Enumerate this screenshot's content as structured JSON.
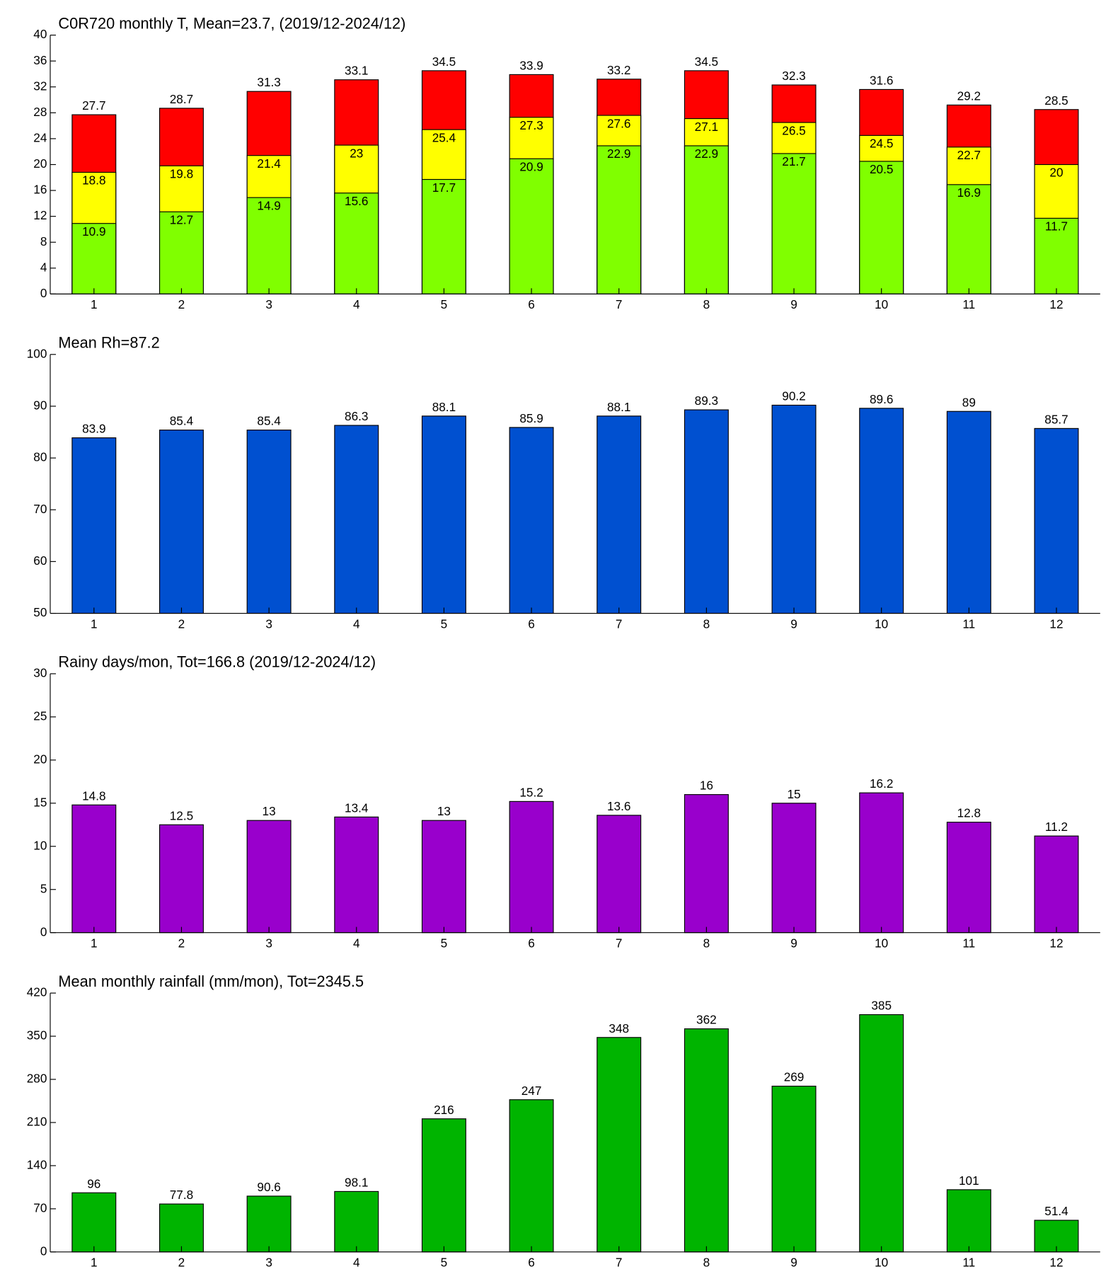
{
  "chart_data": [
    {
      "type": "bar",
      "title": "C0R720 monthly T, Mean=23.7, (2019/12-2024/12)",
      "categories": [
        "1",
        "2",
        "3",
        "4",
        "5",
        "6",
        "7",
        "8",
        "9",
        "10",
        "11",
        "12"
      ],
      "series": [
        {
          "color": "#ff0000",
          "values": [
            27.7,
            28.7,
            31.3,
            33.1,
            34.5,
            33.9,
            33.2,
            34.5,
            32.3,
            31.6,
            29.2,
            28.5
          ]
        },
        {
          "color": "#ffff00",
          "values": [
            18.8,
            19.8,
            21.4,
            23,
            25.4,
            27.3,
            27.6,
            27.1,
            26.5,
            24.5,
            22.7,
            20
          ]
        },
        {
          "color": "#80ff00",
          "values": [
            10.9,
            12.7,
            14.9,
            15.6,
            17.7,
            20.9,
            22.9,
            22.9,
            21.7,
            20.5,
            16.9,
            11.7
          ]
        }
      ],
      "ylim": [
        0,
        40
      ],
      "yticks": [
        0,
        4,
        8,
        12,
        16,
        20,
        24,
        28,
        32,
        36,
        40
      ]
    },
    {
      "type": "bar",
      "title": "Mean Rh=87.2",
      "categories": [
        "1",
        "2",
        "3",
        "4",
        "5",
        "6",
        "7",
        "8",
        "9",
        "10",
        "11",
        "12"
      ],
      "series": [
        {
          "color": "#0050d0",
          "values": [
            83.9,
            85.4,
            85.4,
            86.3,
            88.1,
            85.9,
            88.1,
            89.3,
            90.2,
            89.6,
            89,
            85.7
          ]
        }
      ],
      "ylim": [
        50,
        100
      ],
      "yticks": [
        50,
        60,
        70,
        80,
        90,
        100
      ]
    },
    {
      "type": "bar",
      "title": "Rainy days/mon, Tot=166.8 (2019/12-2024/12)",
      "categories": [
        "1",
        "2",
        "3",
        "4",
        "5",
        "6",
        "7",
        "8",
        "9",
        "10",
        "11",
        "12"
      ],
      "series": [
        {
          "color": "#9900cc",
          "values": [
            14.8,
            12.5,
            13,
            13.4,
            13,
            15.2,
            13.6,
            16,
            15,
            16.2,
            12.8,
            11.2
          ]
        }
      ],
      "ylim": [
        0,
        30
      ],
      "yticks": [
        0,
        5,
        10,
        15,
        20,
        25,
        30
      ]
    },
    {
      "type": "bar",
      "title": "Mean monthly rainfall (mm/mon), Tot=2345.5",
      "categories": [
        "1",
        "2",
        "3",
        "4",
        "5",
        "6",
        "7",
        "8",
        "9",
        "10",
        "11",
        "12"
      ],
      "series": [
        {
          "color": "#00b400",
          "values": [
            96,
            77.8,
            90.6,
            98.1,
            216,
            247,
            348,
            362,
            269,
            385,
            101,
            51.4
          ]
        }
      ],
      "ylim": [
        0,
        420
      ],
      "yticks": [
        0,
        70,
        140,
        210,
        280,
        350,
        420
      ]
    }
  ]
}
